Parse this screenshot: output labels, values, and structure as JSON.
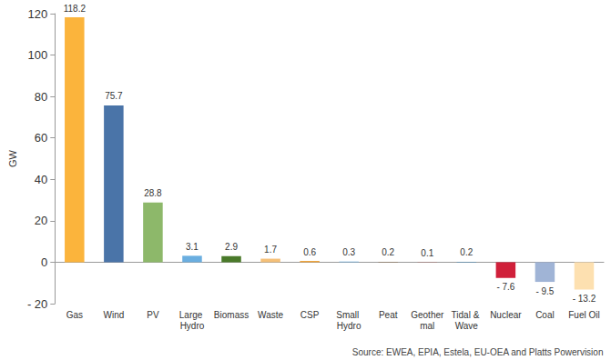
{
  "chart_data": {
    "type": "bar",
    "y_label": "GW",
    "source": "Source: EWEA, EPIA, Estela, EU-OEA and Platts Powervision",
    "categories": [
      "Gas",
      "Wind",
      "PV",
      "Large Hydro",
      "Biomass",
      "Waste",
      "CSP",
      "Small Hydro",
      "Peat",
      "Geothermal",
      "Tidal & Wave",
      "Nuclear",
      "Coal",
      "Fuel Oil"
    ],
    "values": [
      118.2,
      75.7,
      28.8,
      3.1,
      2.9,
      1.7,
      0.6,
      0.3,
      0.2,
      0.1,
      0.2,
      -7.6,
      -9.5,
      -13.2
    ],
    "value_labels": [
      "118.2",
      "75.7",
      "28.8",
      "3.1",
      "2.9",
      "1.7",
      "0.6",
      "0.3",
      "0.2",
      "0.1",
      "0.2",
      "- 7.6",
      "- 9.5",
      "- 13.2"
    ],
    "colors": [
      "#fbb43c",
      "#4a74a8",
      "#8db86a",
      "#6aaee0",
      "#4a7a2a",
      "#f5c078",
      "#f0a030",
      "#6aaee0",
      "#8a6a4a",
      "#c0504d",
      "#3a8ac0",
      "#d0203a",
      "#a0b4d6",
      "#fde0b0"
    ],
    "ylim": [
      -20,
      120
    ],
    "yticks": [
      {
        "value": -20,
        "label": "- 20"
      },
      0,
      20,
      40,
      60,
      80,
      100,
      120
    ],
    "grid": false,
    "data_labels": true
  }
}
